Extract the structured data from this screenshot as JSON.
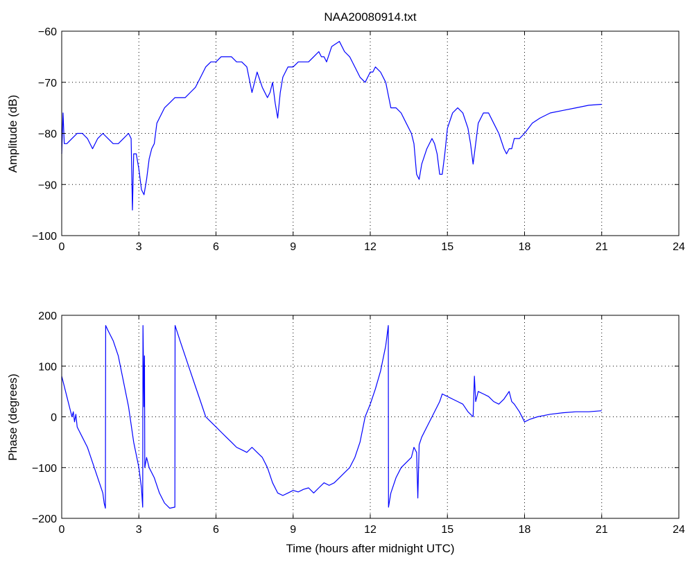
{
  "chart_data": [
    {
      "type": "line",
      "title": "NAA20080914.txt",
      "xlabel": "",
      "ylabel": "Amplitude (dB)",
      "xlim": [
        0,
        24
      ],
      "ylim": [
        -100,
        -60
      ],
      "xticks": [
        "0",
        "3",
        "6",
        "9",
        "12",
        "15",
        "18",
        "21",
        "24"
      ],
      "yticks": [
        "−60",
        "−70",
        "−80",
        "−90",
        "−100"
      ],
      "grid": true,
      "line_color": "#0000ff",
      "series": [
        {
          "x": [
            0,
            0.05,
            0.1,
            0.2,
            0.4,
            0.6,
            0.8,
            1.0,
            1.2,
            1.4,
            1.6,
            1.8,
            2.0,
            2.2,
            2.4,
            2.6,
            2.7,
            2.75,
            2.8,
            2.9,
            3.0,
            3.1,
            3.2,
            3.3,
            3.4,
            3.5,
            3.6,
            3.7,
            3.8,
            4.0,
            4.2,
            4.4,
            4.6,
            4.8,
            5.0,
            5.2,
            5.4,
            5.6,
            5.8,
            6.0,
            6.2,
            6.4,
            6.6,
            6.8,
            7.0,
            7.2,
            7.4,
            7.6,
            7.8,
            8.0,
            8.1,
            8.2,
            8.3,
            8.4,
            8.5,
            8.6,
            8.8,
            9.0,
            9.2,
            9.4,
            9.6,
            9.8,
            10.0,
            10.1,
            10.2,
            10.3,
            10.5,
            10.8,
            11.0,
            11.2,
            11.4,
            11.6,
            11.8,
            12.0,
            12.1,
            12.2,
            12.4,
            12.6,
            12.8,
            13.0,
            13.2,
            13.4,
            13.6,
            13.7,
            13.8,
            13.9,
            14.0,
            14.2,
            14.4,
            14.5,
            14.6,
            14.7,
            14.8,
            14.9,
            15.0,
            15.2,
            15.4,
            15.6,
            15.8,
            15.9,
            16.0,
            16.1,
            16.2,
            16.4,
            16.6,
            16.8,
            17.0,
            17.2,
            17.3,
            17.4,
            17.5,
            17.6,
            17.8,
            18.0,
            18.3,
            18.6,
            19.0,
            19.5,
            20.0,
            20.5,
            21.0
          ],
          "y": [
            -84,
            -76,
            -82,
            -82,
            -81,
            -80,
            -80,
            -81,
            -83,
            -81,
            -80,
            -81,
            -82,
            -82,
            -81,
            -80,
            -81,
            -95,
            -84,
            -84,
            -87,
            -91,
            -92,
            -89,
            -85,
            -83,
            -82,
            -78,
            -77,
            -75,
            -74,
            -73,
            -73,
            -73,
            -72,
            -71,
            -69,
            -67,
            -66,
            -66,
            -65,
            -65,
            -65,
            -66,
            -66,
            -67,
            -72,
            -68,
            -71,
            -73,
            -72,
            -70,
            -74,
            -77,
            -72,
            -69,
            -67,
            -67,
            -66,
            -66,
            -66,
            -65,
            -64,
            -65,
            -65,
            -66,
            -63,
            -62,
            -64,
            -65,
            -67,
            -69,
            -70,
            -68,
            -68,
            -67,
            -68,
            -70,
            -75,
            -75,
            -76,
            -78,
            -80,
            -82,
            -88,
            -89,
            -86,
            -83,
            -81,
            -82,
            -84,
            -88,
            -88,
            -84,
            -79,
            -76,
            -75,
            -76,
            -79,
            -82,
            -86,
            -82,
            -78,
            -76,
            -76,
            -78,
            -80,
            -83,
            -84,
            -83,
            -83,
            -81,
            -81,
            -80,
            -78,
            -77,
            -76,
            -75.5,
            -75,
            -74.5,
            -74.3
          ]
        }
      ]
    },
    {
      "type": "line",
      "title": "",
      "xlabel": "Time (hours after midnight UTC)",
      "ylabel": "Phase (degrees)",
      "xlim": [
        0,
        24
      ],
      "ylim": [
        -200,
        200
      ],
      "xticks": [
        "0",
        "3",
        "6",
        "9",
        "12",
        "15",
        "18",
        "21",
        "24"
      ],
      "yticks": [
        "200",
        "100",
        "0",
        "−100",
        "−200"
      ],
      "grid": true,
      "line_color": "#0000ff",
      "series": [
        {
          "x": [
            0,
            0.1,
            0.2,
            0.3,
            0.4,
            0.45,
            0.5,
            0.55,
            0.6,
            0.7,
            0.8,
            1.0,
            1.2,
            1.4,
            1.6,
            1.65,
            1.7,
            1.71,
            1.8,
            2.0,
            2.2,
            2.4,
            2.6,
            2.8,
            3.0,
            3.1,
            3.15,
            3.16,
            3.2,
            3.22,
            3.23,
            3.3,
            3.4,
            3.6,
            3.8,
            4.0,
            4.2,
            4.4,
            4.41,
            4.6,
            4.8,
            5.0,
            5.2,
            5.4,
            5.6,
            5.8,
            6.0,
            6.2,
            6.4,
            6.6,
            6.8,
            7.0,
            7.2,
            7.4,
            7.6,
            7.8,
            8.0,
            8.2,
            8.4,
            8.6,
            8.8,
            9.0,
            9.2,
            9.4,
            9.6,
            9.8,
            10.0,
            10.2,
            10.4,
            10.6,
            10.8,
            11.0,
            11.2,
            11.4,
            11.6,
            11.8,
            12.0,
            12.2,
            12.4,
            12.6,
            12.7,
            12.71,
            12.8,
            13.0,
            13.2,
            13.4,
            13.6,
            13.7,
            13.8,
            13.85,
            13.9,
            14.0,
            14.2,
            14.4,
            14.6,
            14.7,
            14.8,
            15.0,
            15.2,
            15.4,
            15.6,
            15.8,
            16.0,
            16.05,
            16.1,
            16.2,
            16.4,
            16.6,
            16.8,
            17.0,
            17.2,
            17.4,
            17.5,
            17.6,
            17.8,
            18.0,
            18.2,
            18.5,
            19.0,
            19.5,
            20.0,
            20.5,
            21.0
          ],
          "y": [
            80,
            60,
            40,
            20,
            0,
            10,
            -10,
            5,
            -20,
            -30,
            -40,
            -60,
            -90,
            -120,
            -150,
            -170,
            -180,
            180,
            170,
            150,
            120,
            70,
            20,
            -50,
            -100,
            -140,
            -178,
            180,
            20,
            120,
            -100,
            -80,
            -100,
            -120,
            -150,
            -170,
            -180,
            -178,
            180,
            150,
            120,
            90,
            60,
            30,
            0,
            -10,
            -20,
            -30,
            -40,
            -50,
            -60,
            -65,
            -70,
            -60,
            -70,
            -80,
            -100,
            -130,
            -150,
            -155,
            -150,
            -145,
            -148,
            -143,
            -140,
            -150,
            -140,
            -130,
            -135,
            -130,
            -120,
            -110,
            -100,
            -80,
            -50,
            0,
            25,
            55,
            90,
            140,
            180,
            -178,
            -150,
            -120,
            -100,
            -90,
            -80,
            -60,
            -70,
            -160,
            -55,
            -40,
            -20,
            0,
            20,
            30,
            45,
            40,
            35,
            30,
            25,
            10,
            0,
            80,
            30,
            50,
            45,
            40,
            30,
            25,
            35,
            50,
            30,
            25,
            10,
            -10,
            -5,
            0,
            5,
            8,
            10,
            10,
            12
          ]
        }
      ]
    }
  ]
}
